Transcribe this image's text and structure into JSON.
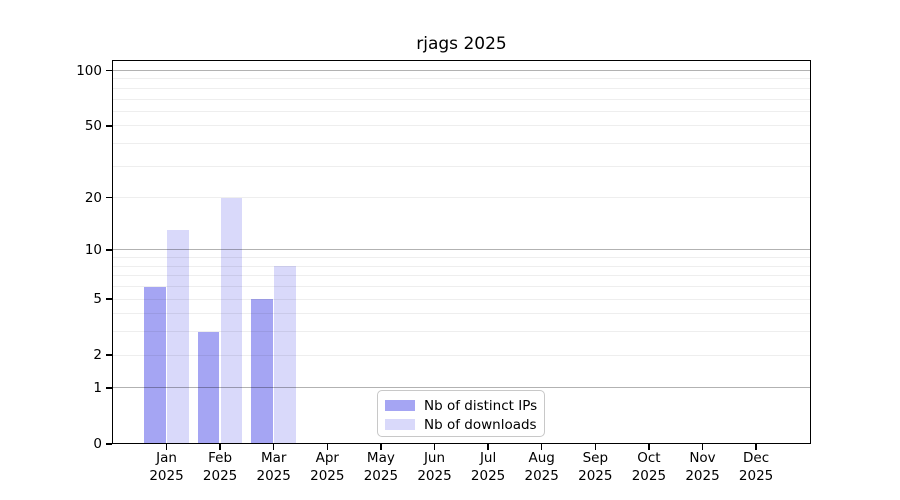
{
  "title": "rjags 2025",
  "chart_data": {
    "type": "bar",
    "title": "rjags 2025",
    "categories": [
      "Jan",
      "Feb",
      "Mar",
      "Apr",
      "May",
      "Jun",
      "Jul",
      "Aug",
      "Sep",
      "Oct",
      "Nov",
      "Dec"
    ],
    "category_year": "2025",
    "series": [
      {
        "name": "Nb of distinct IPs",
        "color": "#a5a5f3",
        "values": [
          6,
          3,
          5,
          null,
          null,
          null,
          null,
          null,
          null,
          null,
          null,
          null
        ]
      },
      {
        "name": "Nb of downloads",
        "color": "#d9d9fa",
        "values": [
          13,
          20,
          8,
          null,
          null,
          null,
          null,
          null,
          null,
          null,
          null,
          null
        ]
      }
    ],
    "y_axis": {
      "scale": "log1p",
      "tick_labels": [
        "100",
        "50",
        "20",
        "10",
        "5",
        "2",
        "1",
        "0"
      ],
      "tick_values": [
        100,
        50,
        20,
        10,
        5,
        2,
        1,
        0
      ],
      "minor_gridlines": [
        2,
        3,
        4,
        5,
        6,
        7,
        8,
        9,
        20,
        30,
        40,
        50,
        60,
        70,
        80,
        90
      ],
      "major_gridlines": [
        1,
        10,
        100
      ],
      "range_max": 114,
      "grid": "on"
    },
    "x_axis": {
      "label_line2": "2025"
    },
    "legend": {
      "position": "bottom-center"
    },
    "colors": {
      "distinct_ips": "#a5a5f3",
      "downloads": "#d9d9fa",
      "major_grid": "#b3b3b3",
      "minor_grid": "#eeeeee",
      "axis": "#000000",
      "background": "#ffffff"
    }
  }
}
